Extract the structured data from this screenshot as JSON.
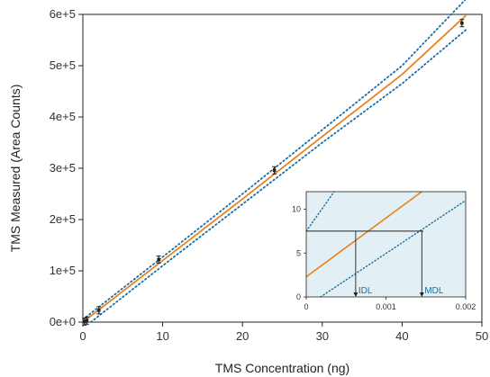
{
  "chart_data": [
    {
      "type": "line",
      "title": "",
      "xlabel": "TMS Concentration (ng)",
      "ylabel": "TMS Measured (Area Counts)",
      "xlim": [
        0,
        50
      ],
      "ylim": [
        0,
        600000
      ],
      "x_ticks": [
        0,
        10,
        20,
        30,
        40,
        50
      ],
      "x_tick_labels": [
        "0",
        "10",
        "20",
        "30",
        "40",
        "50"
      ],
      "y_ticks": [
        0,
        100000,
        200000,
        300000,
        400000,
        500000,
        600000
      ],
      "y_tick_labels": [
        "0e+0",
        "1e+5",
        "2e+5",
        "3e+5",
        "4e+5",
        "5e+5",
        "6e+5"
      ],
      "grid": false,
      "series": [
        {
          "kind": "fit",
          "style": "solid",
          "color": "#e8821e",
          "x": [
            0,
            10,
            20,
            30,
            40,
            48
          ],
          "y": [
            0,
            120000,
            240000,
            362000,
            483000,
            598000
          ]
        },
        {
          "kind": "upper-band",
          "style": "dotted",
          "color": "#1a6fa0",
          "x": [
            0,
            10,
            20,
            30,
            40,
            48
          ],
          "y": [
            5000,
            127000,
            250000,
            375000,
            500000,
            630000
          ]
        },
        {
          "kind": "lower-band",
          "style": "dotted",
          "color": "#1a6fa0",
          "x": [
            1,
            10,
            20,
            30,
            40,
            48
          ],
          "y": [
            0,
            110000,
            230000,
            350000,
            465000,
            570000
          ]
        },
        {
          "kind": "measurements",
          "style": "points",
          "color": "#222222",
          "x": [
            0.2,
            0.5,
            2,
            9.5,
            24,
            47.5
          ],
          "y": [
            1000,
            3000,
            23000,
            122000,
            296000,
            583000
          ]
        }
      ]
    },
    {
      "type": "line",
      "title": "",
      "xlabel": "",
      "ylabel": "",
      "xlim": [
        0,
        0.002
      ],
      "ylim": [
        0,
        12
      ],
      "x_ticks": [
        0,
        0.001,
        0.002
      ],
      "x_tick_labels": [
        "0",
        "0.001",
        "0.002"
      ],
      "y_ticks": [
        0,
        5,
        10
      ],
      "y_tick_labels": [
        "0",
        "5",
        "10"
      ],
      "grid": false,
      "background": "#e2eff5",
      "series": [
        {
          "kind": "fit",
          "style": "solid",
          "color": "#e8821e",
          "x": [
            0,
            0.00145
          ],
          "y": [
            2.3,
            12
          ]
        },
        {
          "kind": "upper-band",
          "style": "dotted",
          "color": "#1a6fa0",
          "x": [
            0,
            0.00035
          ],
          "y": [
            7.5,
            12
          ]
        },
        {
          "kind": "lower-band",
          "style": "dotted",
          "color": "#1a6fa0",
          "x": [
            0.00018,
            0.002
          ],
          "y": [
            0,
            11
          ]
        }
      ],
      "horizontal_lines": [
        {
          "y": 7.5,
          "x_from": 0,
          "x_to": 0.00147,
          "color": "#222222"
        }
      ],
      "markers": [
        {
          "label": "IDL",
          "x": 0.00062,
          "y_from": 7.5,
          "y_to": 0
        },
        {
          "label": "MDL",
          "x": 0.00145,
          "y_from": 7.5,
          "y_to": 0
        }
      ]
    }
  ]
}
